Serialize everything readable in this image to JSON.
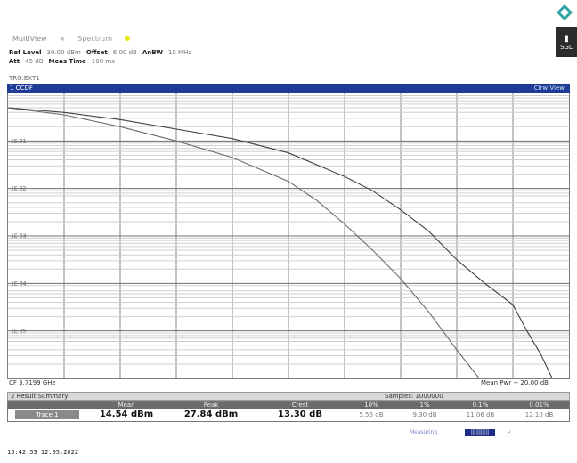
{
  "window": {
    "tabs": [
      {
        "label": "MultiView",
        "active": false
      },
      {
        "label": "Spectrum",
        "active": true
      }
    ]
  },
  "instrument": {
    "ref_level": {
      "key": "Ref Level",
      "value": "30.00 dBm"
    },
    "offset": {
      "key": "Offset",
      "value": "6.00 dB"
    },
    "aqbw": {
      "key": "AnBW",
      "value": "10 MHz"
    },
    "att": {
      "key": "Att",
      "value": "45 dB"
    },
    "meas_time": {
      "key": "Meas Time",
      "value": "100 ms"
    },
    "trigger": "TRG:EXT1"
  },
  "right_panel": {
    "label": "SGL"
  },
  "plot": {
    "title": "1 CCDF",
    "title_right": "Clrw View",
    "footer_left": "CF 3.7199 GHz",
    "footer_right": "Mean Pwr + 20.00 dB"
  },
  "chart_data": {
    "type": "line",
    "xlabel": "",
    "ylabel": "",
    "xlim": [
      0,
      20
    ],
    "ylim": [
      -6,
      0
    ],
    "y_tick_labels": [
      "1E-01",
      "1E-02",
      "1E-03",
      "1E-04",
      "1E-05"
    ],
    "series": [
      {
        "points": [
          [
            0,
            -0.3
          ],
          [
            2,
            -0.45
          ],
          [
            4,
            -0.7
          ],
          [
            6,
            -1.0
          ],
          [
            8,
            -1.35
          ],
          [
            10,
            -1.85
          ],
          [
            11,
            -2.25
          ],
          [
            12,
            -2.75
          ],
          [
            13,
            -3.3
          ],
          [
            14,
            -3.9
          ],
          [
            15,
            -4.6
          ],
          [
            16,
            -5.4
          ],
          [
            16.8,
            -6.0
          ]
        ]
      },
      {
        "points": [
          [
            0,
            -0.3
          ],
          [
            2,
            -0.4
          ],
          [
            4,
            -0.55
          ],
          [
            6,
            -0.75
          ],
          [
            8,
            -0.95
          ],
          [
            10,
            -1.25
          ],
          [
            12,
            -1.75
          ],
          [
            13,
            -2.05
          ],
          [
            14,
            -2.45
          ],
          [
            15,
            -2.9
          ],
          [
            16,
            -3.5
          ],
          [
            17,
            -4.0
          ],
          [
            18,
            -4.45
          ],
          [
            18.5,
            -5.0
          ],
          [
            19,
            -5.5
          ],
          [
            19.4,
            -6.0
          ]
        ]
      }
    ]
  },
  "result_summary": {
    "title": "2 Result Summary",
    "samples": "Samples: 1000000",
    "headers": [
      "",
      "Mean",
      "Peak",
      "Crest",
      "10%",
      "1%",
      "0.1%",
      "0.01%"
    ],
    "row_label": "Trace 1",
    "values": [
      "14.54 dBm",
      "27.84 dBm",
      "13.30 dB",
      "5.56 dB",
      "9.30 dB",
      "11.06 dB",
      "12.10 dB"
    ]
  },
  "status": {
    "item1": "Measuring",
    "item2": "||||||||||",
    "item3": "✓ "
  },
  "timestamp": "15:42:53  12.05.2022"
}
